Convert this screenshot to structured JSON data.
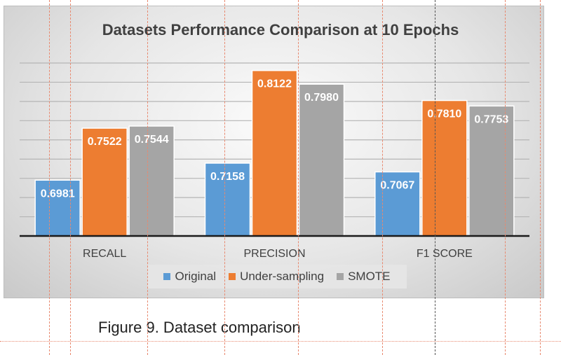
{
  "caption": "Figure 9. Dataset comparison",
  "chart_data": {
    "type": "bar",
    "title": "Datasets Performance Comparison at 10 Epochs",
    "categories": [
      "RECALL",
      "PRECISION",
      "F1 SCORE"
    ],
    "series": [
      {
        "name": "Original",
        "values": [
          0.6981,
          0.7158,
          0.7067
        ],
        "color": "#5b9bd5"
      },
      {
        "name": "Under-sampling",
        "values": [
          0.7522,
          0.8122,
          0.781
        ],
        "color": "#ed7d31"
      },
      {
        "name": "SMOTE",
        "values": [
          0.7544,
          0.798,
          0.7753
        ],
        "color": "#a5a5a5"
      }
    ],
    "data_labels": [
      [
        "0.6981",
        "0.7522",
        "0.7544"
      ],
      [
        "0.7158",
        "0.8122",
        "0.7980"
      ],
      [
        "0.7067",
        "0.7810",
        "0.7753"
      ]
    ],
    "ylim": [
      0.64,
      0.82
    ],
    "grid": true,
    "legend_position": "bottom"
  }
}
